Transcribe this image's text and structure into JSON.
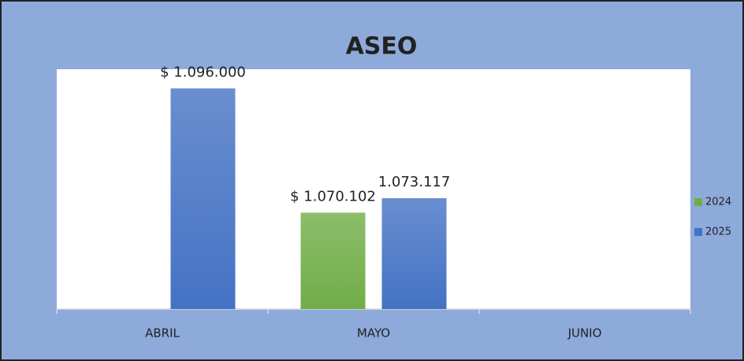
{
  "chart_data": {
    "type": "bar",
    "title": "ASEO",
    "categories": [
      "ABRIL",
      "MAYO",
      "JUNIO"
    ],
    "series": [
      {
        "name": "2024",
        "color": "#70ad47",
        "values": [
          null,
          1070102,
          null
        ],
        "value_labels": [
          null,
          "$ 1.070.102",
          null
        ]
      },
      {
        "name": "2025",
        "color": "#4472c4",
        "values": [
          1096000,
          1073117,
          null
        ],
        "value_labels": [
          "$ 1.096.000",
          "1.073.117",
          null
        ]
      }
    ],
    "ylim": [
      1050000,
      1100000
    ],
    "legend": "right"
  }
}
